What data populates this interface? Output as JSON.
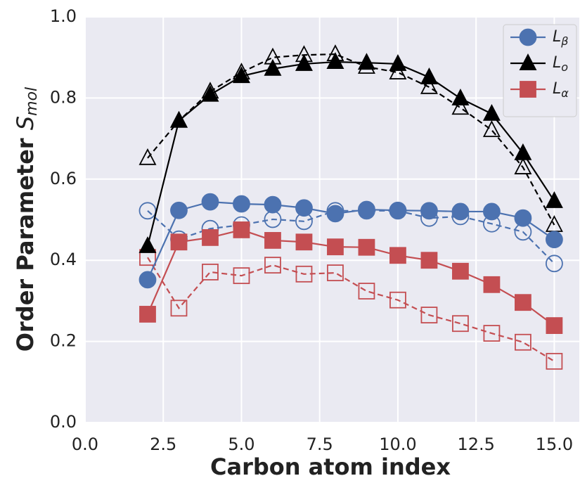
{
  "chart_data": {
    "type": "line",
    "xlabel": "Carbon atom index",
    "ylabel": "Order Parameter",
    "ylabel_symbol": "S",
    "ylabel_subscript": "mol",
    "x": [
      2,
      3,
      4,
      5,
      6,
      7,
      8,
      9,
      10,
      11,
      12,
      13,
      14,
      15
    ],
    "series": [
      {
        "name": "Lβ",
        "color": "#4c72b0",
        "marker": "circle",
        "filled": true,
        "dashed": false,
        "values": [
          0.352,
          0.523,
          0.544,
          0.539,
          0.537,
          0.529,
          0.515,
          0.525,
          0.523,
          0.522,
          0.52,
          0.52,
          0.504,
          0.451
        ]
      },
      {
        "name": "Lo",
        "color": "#000000",
        "marker": "triangle",
        "filled": true,
        "dashed": false,
        "values": [
          0.435,
          0.744,
          0.808,
          0.854,
          0.872,
          0.884,
          0.889,
          0.887,
          0.884,
          0.851,
          0.799,
          0.761,
          0.664,
          0.546
        ]
      },
      {
        "name": "Lα",
        "color": "#c44e52",
        "marker": "square",
        "filled": true,
        "dashed": false,
        "values": [
          0.267,
          0.445,
          0.456,
          0.475,
          0.449,
          0.445,
          0.433,
          0.432,
          0.412,
          0.4,
          0.373,
          0.34,
          0.296,
          0.239
        ]
      },
      {
        "color": "#4c72b0",
        "marker": "circle",
        "filled": false,
        "dashed": true,
        "values": [
          0.522,
          0.452,
          0.478,
          0.487,
          0.501,
          0.496,
          0.522,
          0.522,
          0.522,
          0.504,
          0.508,
          0.49,
          0.47,
          0.392
        ]
      },
      {
        "color": "#000000",
        "marker": "triangle",
        "filled": false,
        "dashed": true,
        "values": [
          0.652,
          0.744,
          0.816,
          0.863,
          0.9,
          0.906,
          0.908,
          0.877,
          0.863,
          0.827,
          0.776,
          0.721,
          0.629,
          0.487
        ]
      },
      {
        "color": "#c44e52",
        "marker": "square",
        "filled": false,
        "dashed": true,
        "values": [
          0.407,
          0.282,
          0.371,
          0.362,
          0.388,
          0.366,
          0.369,
          0.324,
          0.302,
          0.265,
          0.244,
          0.22,
          0.198,
          0.151
        ]
      }
    ],
    "xlim": [
      0,
      15.8
    ],
    "ylim": [
      0,
      1
    ],
    "xticks": [
      {
        "value": 0,
        "label": "0.0"
      },
      {
        "value": 2.5,
        "label": "2.5"
      },
      {
        "value": 5,
        "label": "5.0"
      },
      {
        "value": 7.5,
        "label": "7.5"
      },
      {
        "value": 10,
        "label": "10.0"
      },
      {
        "value": 12.5,
        "label": "12.5"
      },
      {
        "value": 15,
        "label": "15.0"
      }
    ],
    "yticks": [
      {
        "value": 0,
        "label": "0.0"
      },
      {
        "value": 0.2,
        "label": "0.2"
      },
      {
        "value": 0.4,
        "label": "0.4"
      },
      {
        "value": 0.6,
        "label": "0.6"
      },
      {
        "value": 0.8,
        "label": "0.8"
      },
      {
        "value": 1,
        "label": "1.0"
      }
    ],
    "grid": true,
    "background": "#eaeaf2",
    "legend": "upper right"
  }
}
